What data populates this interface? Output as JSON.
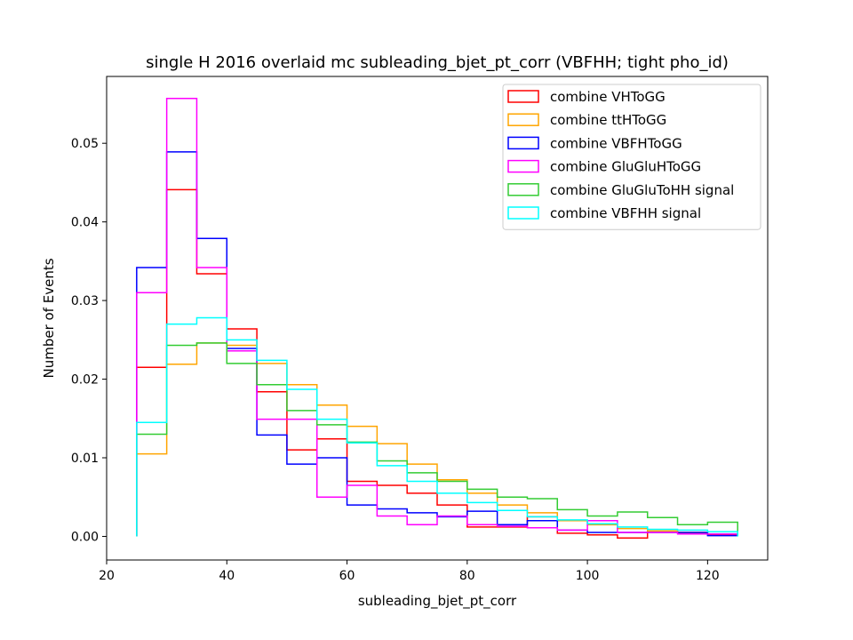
{
  "chart_data": {
    "type": "step-histogram",
    "title": "single H 2016 overlaid mc subleading_bjet_pt_corr (VBFHH; tight pho_id)",
    "xlabel": "subleading_bjet_pt_corr",
    "ylabel": "Number of Events",
    "xlim": [
      20,
      130
    ],
    "ylim": [
      -0.003,
      0.0585
    ],
    "xticks": [
      20,
      40,
      60,
      80,
      100,
      120
    ],
    "xtick_labels": [
      "20",
      "40",
      "60",
      "80",
      "100",
      "120"
    ],
    "yticks": [
      0.0,
      0.01,
      0.02,
      0.03,
      0.04,
      0.05
    ],
    "ytick_labels": [
      "0.00",
      "0.01",
      "0.02",
      "0.03",
      "0.04",
      "0.05"
    ],
    "legend_position": "top-right",
    "bin_edges": [
      25,
      30,
      35,
      40,
      45,
      50,
      55,
      60,
      65,
      70,
      75,
      80,
      85,
      90,
      95,
      100,
      105,
      110,
      115,
      120,
      125
    ],
    "series": [
      {
        "name": "combine VHToGG",
        "color": "#ff0000",
        "values": [
          0.0215,
          0.0441,
          0.0334,
          0.0264,
          0.0184,
          0.011,
          0.0124,
          0.007,
          0.0065,
          0.0055,
          0.004,
          0.0012,
          0.0012,
          0.0025,
          0.0004,
          0.0002,
          -0.0002,
          0.0007,
          0.0005,
          0.0002
        ]
      },
      {
        "name": "combine ttHToGG",
        "color": "#ffa500",
        "values": [
          0.0105,
          0.0219,
          0.0246,
          0.0243,
          0.022,
          0.0193,
          0.0167,
          0.014,
          0.0118,
          0.0092,
          0.0072,
          0.0055,
          0.004,
          0.003,
          0.002,
          0.0015,
          0.001,
          0.0007,
          0.0005,
          0.0003
        ]
      },
      {
        "name": "combine VBFHToGG",
        "color": "#0000ff",
        "values": [
          0.0342,
          0.0489,
          0.0379,
          0.0239,
          0.0129,
          0.0092,
          0.01,
          0.004,
          0.0035,
          0.003,
          0.0025,
          0.0032,
          0.0015,
          0.002,
          0.0008,
          0.0005,
          0.0005,
          0.0005,
          0.0005,
          0.0001
        ]
      },
      {
        "name": "combine GluGluHToGG",
        "color": "#ff00ff",
        "values": [
          0.031,
          0.0557,
          0.0342,
          0.0236,
          0.0149,
          0.0149,
          0.005,
          0.0065,
          0.0026,
          0.0015,
          0.0026,
          0.0015,
          0.0013,
          0.0011,
          0.0008,
          0.002,
          0.0005,
          0.0005,
          0.0003,
          0.0003
        ]
      },
      {
        "name": "combine GluGluToHH signal",
        "color": "#33cc33",
        "values": [
          0.013,
          0.0243,
          0.0246,
          0.022,
          0.0193,
          0.016,
          0.0142,
          0.012,
          0.0096,
          0.0081,
          0.007,
          0.006,
          0.005,
          0.0048,
          0.0034,
          0.0026,
          0.0031,
          0.0024,
          0.0015,
          0.0018
        ]
      },
      {
        "name": "combine VBFHH signal",
        "color": "#00ffff",
        "values": [
          0.0145,
          0.027,
          0.0278,
          0.025,
          0.0224,
          0.0187,
          0.0149,
          0.0119,
          0.009,
          0.007,
          0.0055,
          0.0043,
          0.0033,
          0.0025,
          0.0021,
          0.0016,
          0.0012,
          0.0009,
          0.0008,
          0.0006
        ]
      }
    ]
  }
}
